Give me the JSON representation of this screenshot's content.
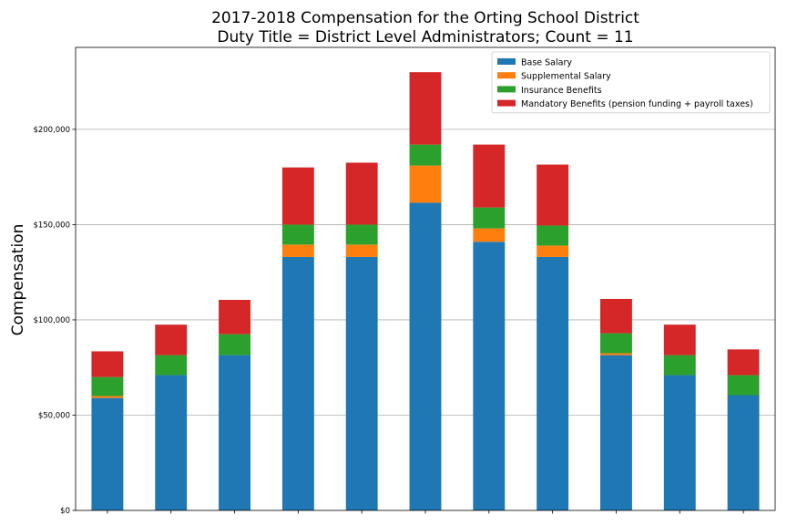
{
  "chart_data": {
    "type": "bar",
    "stacked": true,
    "title_line1": "2017-2018 Compensation for the Orting School District",
    "title_line2": "Duty Title = District Level Administrators; Count = 11",
    "xlabel": "",
    "ylabel": "Compensation",
    "ylim": [
      0,
      243000
    ],
    "yticks": [
      0,
      50000,
      100000,
      150000,
      200000
    ],
    "ytick_labels": [
      "$0",
      "$50,000",
      "$100,000",
      "$150,000",
      "$200,000"
    ],
    "grid": "horizontal",
    "legend_position": "top-right",
    "bar_count": 11,
    "series": [
      {
        "name": "Base Salary",
        "color": "#1f77b4",
        "values": [
          59000,
          71000,
          81500,
          133000,
          133000,
          161500,
          141000,
          133000,
          81500,
          71000,
          60500
        ]
      },
      {
        "name": "Supplemental Salary",
        "color": "#ff7f0e",
        "values": [
          1000,
          0,
          0,
          6500,
          6500,
          19500,
          7000,
          6000,
          1000,
          0,
          0
        ]
      },
      {
        "name": "Insurance Benefits",
        "color": "#2ca02c",
        "values": [
          10000,
          10500,
          11000,
          10500,
          10500,
          11000,
          11000,
          10500,
          10500,
          10500,
          10500
        ]
      },
      {
        "name": "Mandatory Benefits (pension funding + payroll taxes)",
        "color": "#d62728",
        "values": [
          13500,
          16000,
          18000,
          30000,
          32500,
          38000,
          33000,
          32000,
          18000,
          16000,
          13500
        ]
      }
    ]
  }
}
